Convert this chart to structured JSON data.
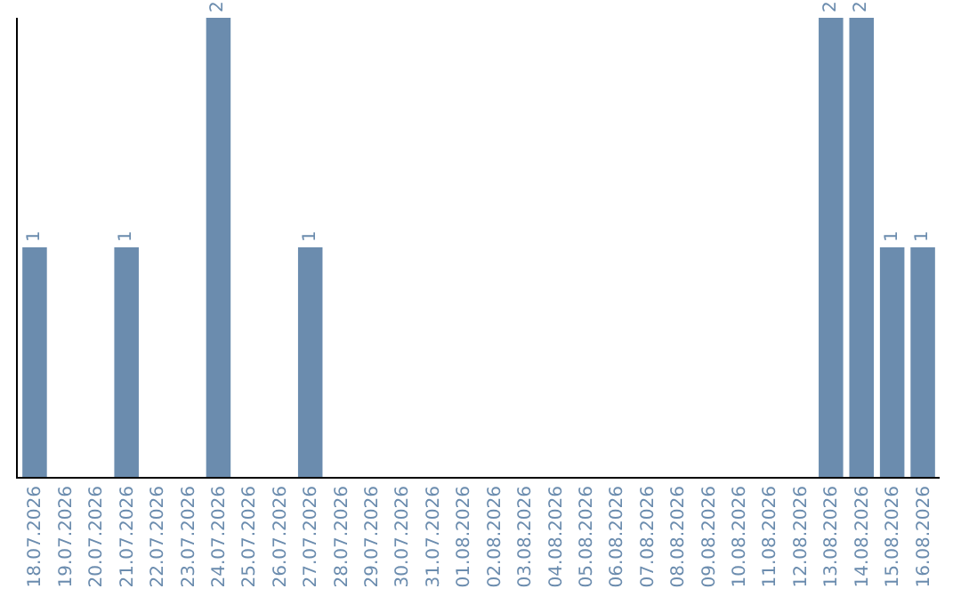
{
  "chart_data": {
    "type": "bar",
    "categories": [
      "18.07.2026",
      "19.07.2026",
      "20.07.2026",
      "21.07.2026",
      "22.07.2026",
      "23.07.2026",
      "24.07.2026",
      "25.07.2026",
      "26.07.2026",
      "27.07.2026",
      "28.07.2026",
      "29.07.2026",
      "30.07.2026",
      "31.07.2026",
      "01.08.2026",
      "02.08.2026",
      "03.08.2026",
      "04.08.2026",
      "05.08.2026",
      "06.08.2026",
      "07.08.2026",
      "08.08.2026",
      "09.08.2026",
      "10.08.2026",
      "11.08.2026",
      "12.08.2026",
      "13.08.2026",
      "14.08.2026",
      "15.08.2026",
      "16.08.2026"
    ],
    "values": [
      1,
      0,
      0,
      1,
      0,
      0,
      2,
      0,
      0,
      1,
      0,
      0,
      0,
      0,
      0,
      0,
      0,
      0,
      0,
      0,
      0,
      0,
      0,
      0,
      0,
      0,
      2,
      2,
      1,
      1
    ],
    "value_labels": [
      "1",
      null,
      null,
      "1",
      null,
      null,
      "2",
      null,
      null,
      "1",
      null,
      null,
      null,
      null,
      null,
      null,
      null,
      null,
      null,
      null,
      null,
      null,
      null,
      null,
      null,
      null,
      "2",
      "2",
      "1",
      "1"
    ],
    "color": "#6b8cae",
    "ylim": [
      0,
      2
    ],
    "tick_labels": "x"
  }
}
